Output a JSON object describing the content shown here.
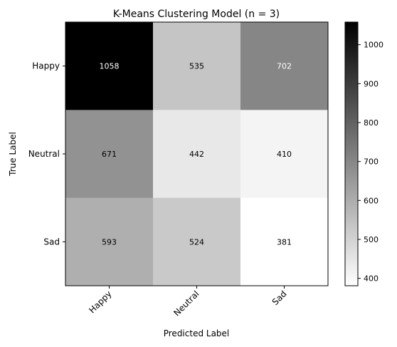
{
  "chart_data": {
    "type": "heatmap",
    "title": "K-Means Clustering Model (n = 3)",
    "xlabel": "Predicted Label",
    "ylabel": "True Label",
    "x_categories": [
      "Happy",
      "Neutral",
      "Sad"
    ],
    "y_categories": [
      "Happy",
      "Neutral",
      "Sad"
    ],
    "values": [
      [
        1058,
        535,
        702
      ],
      [
        671,
        442,
        410
      ],
      [
        593,
        524,
        381
      ]
    ],
    "colormap": "greys",
    "color_range": [
      381,
      1058
    ],
    "colorbar_ticks": [
      400,
      500,
      600,
      700,
      800,
      900,
      1000
    ],
    "x_tick_rotation_deg": 45
  }
}
